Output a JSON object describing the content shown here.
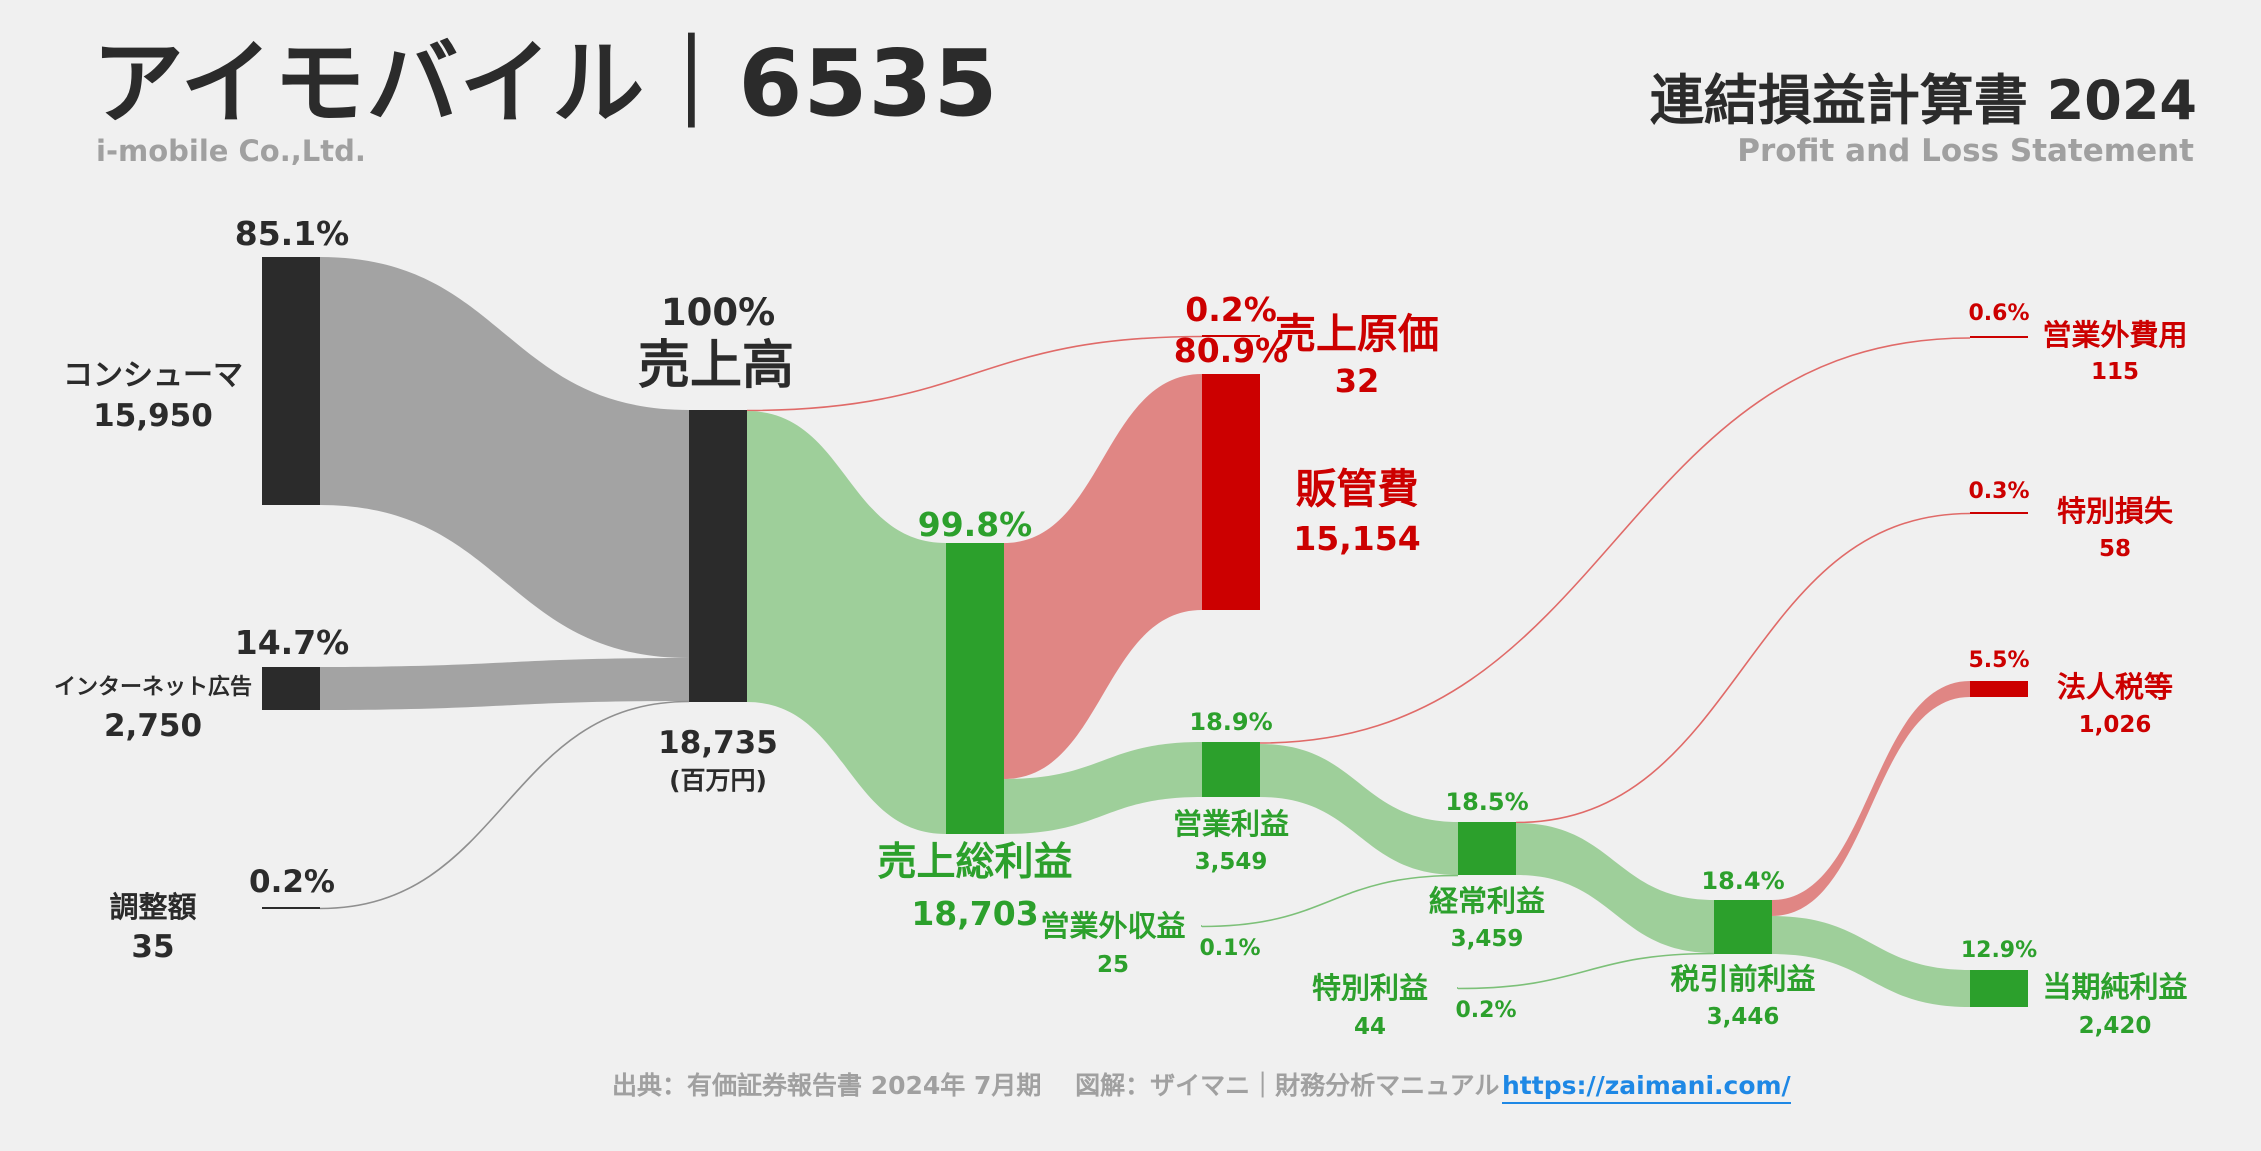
{
  "header": {
    "company": "アイモバイル｜6535",
    "company_en": "i-mobile Co.,Ltd.",
    "statement": "連結損益計算書 2024",
    "statement_en": "Profit and Loss Statement"
  },
  "footer": {
    "source": "出典：有価証券報告書 2024年 7月期　 図解：ザイマニ｜財務分析マニュアル",
    "url": "https://zaimani.com/"
  },
  "colors": {
    "node_dark": "#2b2b2b",
    "node_green": "#2ca02c",
    "node_red": "#cc0000",
    "flow_gray": "#a3a3a3",
    "flow_green": "#9ecf9a",
    "flow_red": "#e08684",
    "text_green": "#2ca02c",
    "text_red": "#cc0000",
    "text_dark": "#2b2b2b",
    "text_gray": "#9a9a9a"
  },
  "chart_data": {
    "type": "sankey",
    "unit": "(百万円)",
    "nodes": {
      "consumer": {
        "name": "コンシューマ",
        "value": "15,950",
        "pct": "85.1%"
      },
      "internet_ad": {
        "name": "インターネット広告",
        "value": "2,750",
        "pct": "14.7%"
      },
      "adjust": {
        "name": "調整額",
        "value": "35",
        "pct": "0.2%"
      },
      "revenue": {
        "name": "売上高",
        "value": "18,735",
        "pct": "100%"
      },
      "gross_profit": {
        "name": "売上総利益",
        "value": "18,703",
        "pct": "99.8%"
      },
      "cogs": {
        "name": "売上原価",
        "value": "32",
        "pct": "0.2%"
      },
      "sga": {
        "name": "販管費",
        "value": "15,154",
        "pct": "80.9%"
      },
      "operating_profit": {
        "name": "営業利益",
        "value": "3,549",
        "pct": "18.9%"
      },
      "non_op_income": {
        "name": "営業外収益",
        "value": "25",
        "pct": "0.1%"
      },
      "non_op_expense": {
        "name": "営業外費用",
        "value": "115",
        "pct": "0.6%"
      },
      "ordinary_profit": {
        "name": "経常利益",
        "value": "3,459",
        "pct": "18.5%"
      },
      "special_gain": {
        "name": "特別利益",
        "value": "44",
        "pct": "0.2%"
      },
      "special_loss": {
        "name": "特別損失",
        "value": "58",
        "pct": "0.3%"
      },
      "pretax_profit": {
        "name": "税引前利益",
        "value": "3,446",
        "pct": "18.4%"
      },
      "tax": {
        "name": "法人税等",
        "value": "1,026",
        "pct": "5.5%"
      },
      "net_profit": {
        "name": "当期純利益",
        "value": "2,420",
        "pct": "12.9%"
      }
    },
    "links": [
      {
        "source": "consumer",
        "target": "revenue",
        "value": 15950
      },
      {
        "source": "internet_ad",
        "target": "revenue",
        "value": 2750
      },
      {
        "source": "adjust",
        "target": "revenue",
        "value": 35
      },
      {
        "source": "revenue",
        "target": "cogs",
        "value": 32
      },
      {
        "source": "revenue",
        "target": "gross_profit",
        "value": 18703
      },
      {
        "source": "gross_profit",
        "target": "sga",
        "value": 15154
      },
      {
        "source": "gross_profit",
        "target": "operating_profit",
        "value": 3549
      },
      {
        "source": "operating_profit",
        "target": "non_op_expense",
        "value": 115
      },
      {
        "source": "operating_profit",
        "target": "ordinary_profit",
        "value": 3434
      },
      {
        "source": "non_op_income",
        "target": "ordinary_profit",
        "value": 25
      },
      {
        "source": "ordinary_profit",
        "target": "special_loss",
        "value": 58
      },
      {
        "source": "ordinary_profit",
        "target": "pretax_profit",
        "value": 3402
      },
      {
        "source": "special_gain",
        "target": "pretax_profit",
        "value": 44
      },
      {
        "source": "pretax_profit",
        "target": "tax",
        "value": 1026
      },
      {
        "source": "pretax_profit",
        "target": "net_profit",
        "value": 2420
      }
    ]
  }
}
